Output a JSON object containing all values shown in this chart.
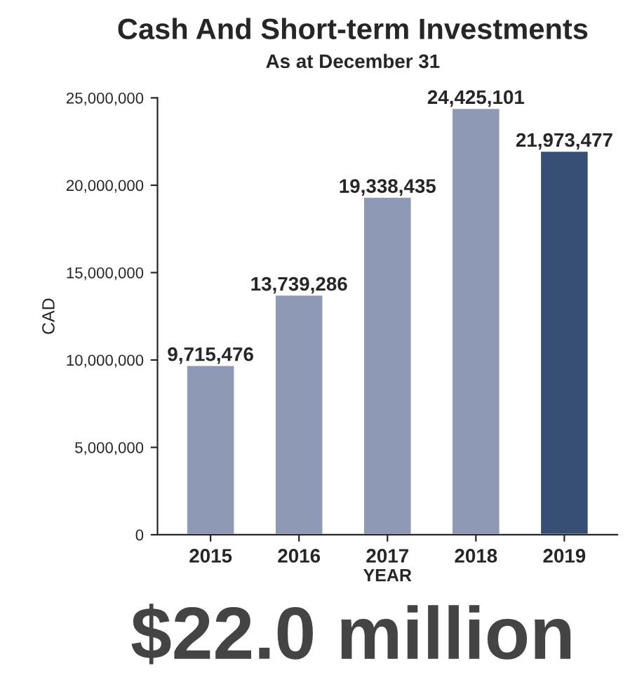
{
  "chart_data": {
    "type": "bar",
    "title": "Cash And Short-term Investments",
    "subtitle": "As at December 31",
    "xlabel": "YEAR",
    "ylabel": "CAD",
    "categories": [
      "2015",
      "2016",
      "2017",
      "2018",
      "2019"
    ],
    "values": [
      9715476,
      13739286,
      19338435,
      24425101,
      21973477
    ],
    "colors": [
      "#8896bb",
      "#8896bb",
      "#8896bb",
      "#8896bb",
      "#2e4d7f"
    ],
    "value_labels": [
      "9,715,476",
      "13,739,286",
      "19,338,435",
      "24,425,101",
      "21,973,477"
    ],
    "ylim": [
      0,
      25000000
    ],
    "yticks": [
      {
        "value": 0,
        "label": "0"
      },
      {
        "value": 5000000,
        "label": "5,000,000"
      },
      {
        "value": 10000000,
        "label": "10,000,000"
      },
      {
        "value": 15000000,
        "label": "15,000,000"
      },
      {
        "value": 20000000,
        "label": "20,000,000"
      },
      {
        "value": 25000000,
        "label": "25,000,000"
      }
    ],
    "grid": false,
    "legend": false,
    "annotations": [
      "$22.0 million"
    ]
  }
}
